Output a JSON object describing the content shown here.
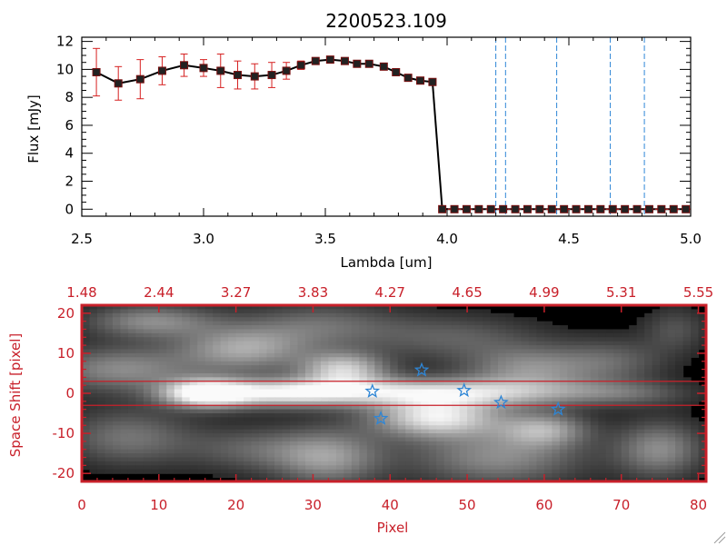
{
  "chart_data": [
    {
      "type": "line",
      "title": "2200523.109",
      "xlabel": "Lambda [um]",
      "ylabel": "Flux [mJy]",
      "xlim": [
        2.5,
        5.0
      ],
      "ylim": [
        -0.5,
        12.3
      ],
      "x_ticks": [
        "2.5",
        "3.0",
        "3.5",
        "4.0",
        "4.5",
        "5.0"
      ],
      "y_ticks": [
        "0",
        "2",
        "4",
        "6",
        "8",
        "10",
        "12"
      ],
      "series": [
        {
          "x": [
            2.56,
            2.65,
            2.74,
            2.83,
            2.92,
            3.0,
            3.07,
            3.14,
            3.21,
            3.28,
            3.34,
            3.4,
            3.46,
            3.52,
            3.58,
            3.63,
            3.68,
            3.74,
            3.79,
            3.84,
            3.89,
            3.94,
            3.98,
            4.03,
            4.08,
            4.13,
            4.18,
            4.23,
            4.28,
            4.33,
            4.38,
            4.43,
            4.48,
            4.53,
            4.58,
            4.63,
            4.68,
            4.73,
            4.78,
            4.83,
            4.88,
            4.93,
            4.98
          ],
          "y": [
            9.8,
            9.0,
            9.3,
            9.9,
            10.3,
            10.1,
            9.9,
            9.6,
            9.5,
            9.6,
            9.9,
            10.3,
            10.6,
            10.7,
            10.6,
            10.4,
            10.4,
            10.2,
            9.8,
            9.4,
            9.2,
            9.1,
            0,
            0,
            0,
            0,
            0,
            0,
            0,
            0,
            0,
            0,
            0,
            0,
            0,
            0,
            0,
            0,
            0,
            0,
            0,
            0,
            0
          ],
          "yerr": [
            1.7,
            1.2,
            1.4,
            1.0,
            0.8,
            0.6,
            1.2,
            1.0,
            0.9,
            0.9,
            0.6,
            0.3,
            0.2,
            0.2,
            0.2,
            0.2,
            0.2,
            0.2,
            0.2,
            0.2,
            0.2,
            0.2,
            0,
            0,
            0,
            0,
            0,
            0,
            0,
            0,
            0,
            0,
            0,
            0,
            0,
            0,
            0,
            0,
            0,
            0,
            0,
            0,
            0
          ]
        }
      ],
      "vertical_lines": [
        4.2,
        4.24,
        4.45,
        4.67,
        4.81
      ],
      "grid": false
    },
    {
      "type": "heatmap",
      "xlabel": "Pixel",
      "ylabel": "Space Shift [pixel]",
      "xlim": [
        0,
        81
      ],
      "ylim": [
        -22,
        22
      ],
      "x_ticks": [
        "0",
        "10",
        "20",
        "30",
        "40",
        "50",
        "60",
        "70",
        "80"
      ],
      "y_ticks": [
        "-20",
        "-10",
        "0",
        "10",
        "20"
      ],
      "top_axis_ticks": [
        "1.48",
        "2.44",
        "3.27",
        "3.83",
        "4.27",
        "4.65",
        "4.99",
        "5.31",
        "5.55"
      ],
      "aperture_lines": [
        3,
        -3
      ],
      "stars": [
        {
          "x": 37.7,
          "y": 0.5
        },
        {
          "x": 38.8,
          "y": -6.3
        },
        {
          "x": 44.1,
          "y": 5.8
        },
        {
          "x": 49.6,
          "y": 0.7
        },
        {
          "x": 54.4,
          "y": -2.3
        },
        {
          "x": 61.8,
          "y": -4.0
        }
      ],
      "blobs": [
        {
          "x": 16,
          "y": 0,
          "sx": 4,
          "sy": 2.5,
          "a": 1.0
        },
        {
          "x": 26,
          "y": 0,
          "sx": 7,
          "sy": 2.5,
          "a": 0.75
        },
        {
          "x": 40,
          "y": 0.5,
          "sx": 10,
          "sy": 2.5,
          "a": 0.6
        },
        {
          "x": 55,
          "y": 0,
          "sx": 10,
          "sy": 2.5,
          "a": 0.45
        },
        {
          "x": 71,
          "y": 0,
          "sx": 6,
          "sy": 2.2,
          "a": 0.25
        },
        {
          "x": 34,
          "y": 6,
          "sx": 4,
          "sy": 3,
          "a": 0.75
        },
        {
          "x": 46,
          "y": -6,
          "sx": 6,
          "sy": 3.5,
          "a": 0.9
        },
        {
          "x": 60,
          "y": -9,
          "sx": 4,
          "sy": 3,
          "a": 0.55
        },
        {
          "x": 58,
          "y": 6,
          "sx": 6,
          "sy": 4,
          "a": 0.5
        },
        {
          "x": 69,
          "y": 8,
          "sx": 5,
          "sy": 4,
          "a": 0.3
        },
        {
          "x": 5,
          "y": 6,
          "sx": 7,
          "sy": 4,
          "a": 0.5
        },
        {
          "x": 21,
          "y": 11,
          "sx": 6,
          "sy": 4,
          "a": 0.6
        },
        {
          "x": 9,
          "y": 18,
          "sx": 6,
          "sy": 3,
          "a": 0.5
        },
        {
          "x": 31,
          "y": 17,
          "sx": 7,
          "sy": 4,
          "a": 0.35
        },
        {
          "x": 48,
          "y": 14,
          "sx": 8,
          "sy": 4,
          "a": 0.3
        },
        {
          "x": 6,
          "y": -11,
          "sx": 6,
          "sy": 5,
          "a": 0.4
        },
        {
          "x": 32,
          "y": -16,
          "sx": 5,
          "sy": 5,
          "a": 0.55
        },
        {
          "x": 54,
          "y": -16,
          "sx": 8,
          "sy": 5,
          "a": 0.5
        },
        {
          "x": 22,
          "y": -14,
          "sx": 6,
          "sy": 4,
          "a": 0.3
        },
        {
          "x": 75,
          "y": -14,
          "sx": 4,
          "sy": 5,
          "a": 0.5
        },
        {
          "x": 77,
          "y": 16,
          "sx": 3,
          "sy": 4,
          "a": 0.25
        }
      ],
      "colors": {
        "frame": "#c8202a",
        "stars": "#2e86d6",
        "aperture": "#c8202a"
      }
    }
  ]
}
